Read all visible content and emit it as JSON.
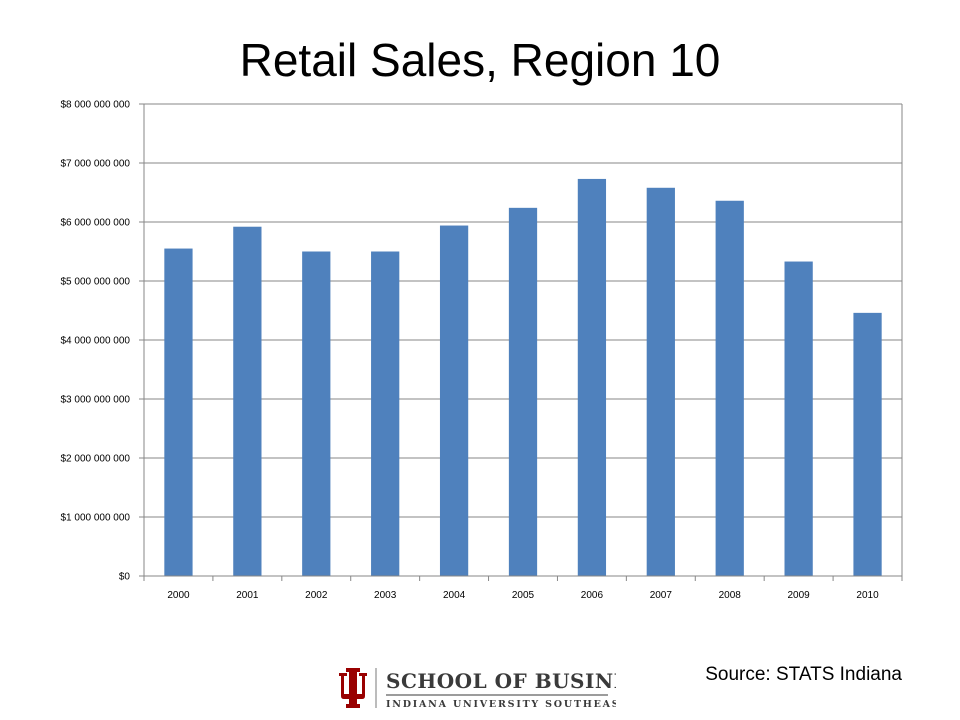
{
  "slide": {
    "title": "Retail Sales, Region 10",
    "source": "Source:  STATS Indiana"
  },
  "logo": {
    "line1": "SCHOOL OF BUSINESS",
    "line2": "INDIANA UNIVERSITY SOUTHEAST",
    "color": "#990000"
  },
  "chart_data": {
    "type": "bar",
    "title": "Retail Sales, Region 10",
    "xlabel": "",
    "ylabel": "",
    "categories": [
      "2000",
      "2001",
      "2002",
      "2003",
      "2004",
      "2005",
      "2006",
      "2007",
      "2008",
      "2009",
      "2010"
    ],
    "values": [
      5550000000,
      5920000000,
      5500000000,
      5500000000,
      5940000000,
      6240000000,
      6730000000,
      6580000000,
      6360000000,
      5330000000,
      4460000000
    ],
    "ylim": [
      0,
      8000000000
    ],
    "yticks": [
      0,
      1000000000,
      2000000000,
      3000000000,
      4000000000,
      5000000000,
      6000000000,
      7000000000,
      8000000000
    ],
    "ytick_labels": [
      "$0",
      "$1 000 000 000",
      "$2 000 000 000",
      "$3 000 000 000",
      "$4 000 000 000",
      "$5 000 000 000",
      "$6 000 000 000",
      "$7 000 000 000",
      "$8 000 000 000"
    ],
    "grid": true,
    "legend": "none",
    "bar_color": "#4f81bd"
  }
}
